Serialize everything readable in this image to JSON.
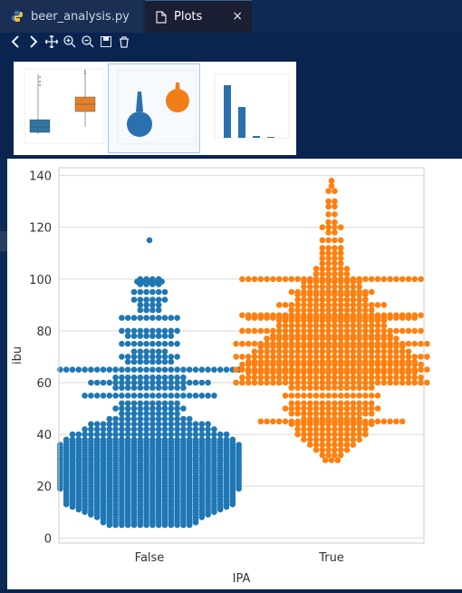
{
  "tabs": [
    {
      "label": "beer_analysis.py",
      "icon": "python-icon"
    },
    {
      "label": "Plots",
      "icon": "file-icon",
      "close": "×"
    }
  ],
  "toolbar": {
    "icons": [
      "chevron-left-icon",
      "chevron-right-icon",
      "move-icon",
      "zoom-in-icon",
      "zoom-out-icon",
      "save-icon",
      "delete-icon"
    ]
  },
  "thumbnails": [
    {
      "kind": "boxplot",
      "selected": false
    },
    {
      "kind": "swarmplot",
      "selected": true
    },
    {
      "kind": "bar",
      "selected": false
    }
  ],
  "colors": {
    "false_series": "#1f77b4",
    "true_series": "#ff7f0e",
    "grid": "#d9d9d9"
  },
  "chart_data": {
    "type": "scatter",
    "subtype": "swarm",
    "title": "",
    "xlabel": "IPA",
    "ylabel": "ibu",
    "categories": [
      "False",
      "True"
    ],
    "yticks": [
      "0",
      "20",
      "40",
      "60",
      "80",
      "100",
      "120",
      "140"
    ],
    "ylim": [
      -2,
      143
    ],
    "grid": true,
    "series": [
      {
        "name": "False",
        "color": "#1f77b4",
        "levels": [
          [
            5,
            14
          ],
          [
            6,
            16
          ],
          [
            7,
            16
          ],
          [
            8,
            18
          ],
          [
            9,
            20
          ],
          [
            10,
            22
          ],
          [
            11,
            24
          ],
          [
            12,
            26
          ],
          [
            13,
            28
          ],
          [
            14,
            28
          ],
          [
            15,
            28
          ],
          [
            16,
            28
          ],
          [
            17,
            28
          ],
          [
            18,
            28
          ],
          [
            19,
            30
          ],
          [
            20,
            30
          ],
          [
            21,
            30
          ],
          [
            22,
            30
          ],
          [
            23,
            30
          ],
          [
            24,
            30
          ],
          [
            25,
            30
          ],
          [
            26,
            30
          ],
          [
            27,
            30
          ],
          [
            28,
            30
          ],
          [
            29,
            30
          ],
          [
            30,
            30
          ],
          [
            31,
            30
          ],
          [
            32,
            30
          ],
          [
            33,
            30
          ],
          [
            34,
            30
          ],
          [
            35,
            30
          ],
          [
            36,
            30
          ],
          [
            37,
            28
          ],
          [
            38,
            28
          ],
          [
            40,
            26
          ],
          [
            42,
            22
          ],
          [
            44,
            20
          ],
          [
            46,
            14
          ],
          [
            48,
            10
          ],
          [
            50,
            12
          ],
          [
            52,
            10
          ],
          [
            55,
            22
          ],
          [
            58,
            12
          ],
          [
            60,
            20
          ],
          [
            62,
            12
          ],
          [
            65,
            30
          ],
          [
            68,
            8
          ],
          [
            70,
            10
          ],
          [
            72,
            6
          ],
          [
            75,
            10
          ],
          [
            78,
            8
          ],
          [
            80,
            10
          ],
          [
            85,
            10
          ],
          [
            88,
            4
          ],
          [
            90,
            4
          ],
          [
            92,
            6
          ],
          [
            95,
            6
          ],
          [
            98,
            4
          ],
          [
            99,
            5
          ],
          [
            100,
            4
          ],
          [
            115,
            1
          ]
        ]
      },
      {
        "name": "True",
        "color": "#ff7f0e",
        "levels": [
          [
            30,
            3
          ],
          [
            32,
            4
          ],
          [
            34,
            6
          ],
          [
            36,
            8
          ],
          [
            38,
            10
          ],
          [
            40,
            12
          ],
          [
            42,
            12
          ],
          [
            44,
            14
          ],
          [
            45,
            24
          ],
          [
            46,
            10
          ],
          [
            48,
            14
          ],
          [
            50,
            16
          ],
          [
            52,
            14
          ],
          [
            55,
            16
          ],
          [
            58,
            14
          ],
          [
            60,
            32
          ],
          [
            62,
            30
          ],
          [
            64,
            28
          ],
          [
            65,
            32
          ],
          [
            67,
            30
          ],
          [
            68,
            28
          ],
          [
            70,
            32
          ],
          [
            72,
            26
          ],
          [
            74,
            24
          ],
          [
            75,
            32
          ],
          [
            77,
            22
          ],
          [
            78,
            20
          ],
          [
            80,
            30
          ],
          [
            82,
            18
          ],
          [
            84,
            18
          ],
          [
            85,
            28
          ],
          [
            86,
            30
          ],
          [
            88,
            14
          ],
          [
            90,
            18
          ],
          [
            92,
            12
          ],
          [
            94,
            12
          ],
          [
            95,
            14
          ],
          [
            97,
            10
          ],
          [
            99,
            10
          ],
          [
            100,
            30
          ],
          [
            102,
            6
          ],
          [
            104,
            6
          ],
          [
            106,
            4
          ],
          [
            108,
            4
          ],
          [
            110,
            4
          ],
          [
            112,
            4
          ],
          [
            115,
            4
          ],
          [
            118,
            2
          ],
          [
            120,
            4
          ],
          [
            122,
            2
          ],
          [
            125,
            2
          ],
          [
            128,
            2
          ],
          [
            130,
            2
          ],
          [
            134,
            2
          ],
          [
            136,
            1
          ],
          [
            138,
            1
          ]
        ]
      }
    ]
  }
}
